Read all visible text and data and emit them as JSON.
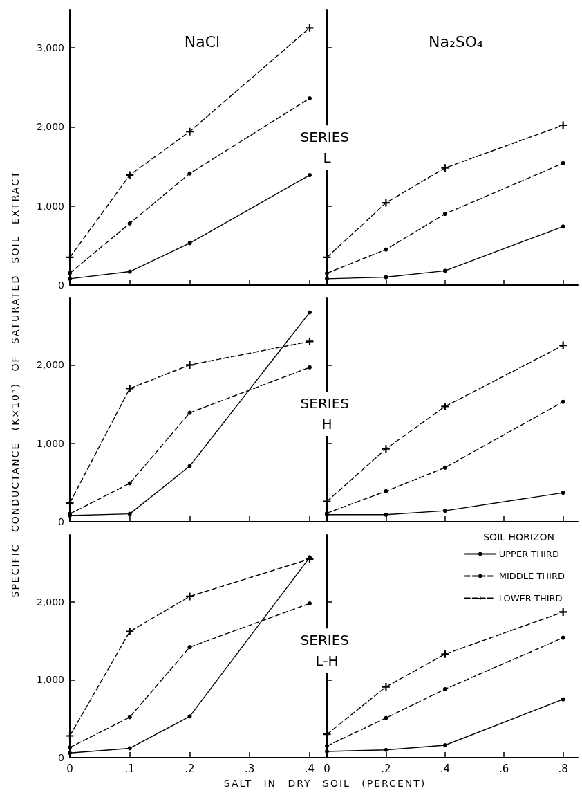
{
  "chart_data": [
    {
      "type": "line",
      "title": "NaCl",
      "x": [
        0,
        0.1,
        0.2,
        0.4
      ],
      "xlim": [
        0,
        0.43
      ],
      "xticks": [
        {
          "value": 0.1,
          "label": null
        },
        {
          "value": 0.2,
          "label": null
        },
        {
          "value": 0.3,
          "label": null
        },
        {
          "value": 0.4,
          "label": null
        }
      ],
      "ylim": [
        0,
        3480
      ],
      "yticks": [
        {
          "value": 0,
          "label": "0"
        },
        {
          "value": 1000,
          "label": "1,000"
        },
        {
          "value": 2000,
          "label": "2,000"
        },
        {
          "value": 3000,
          "label": "3,000"
        }
      ],
      "tick_labels": "y",
      "series": [
        {
          "color": "#000000",
          "marker": "circle",
          "line_style": "solid",
          "values": [
            80,
            170,
            530,
            1390
          ]
        },
        {
          "color": "#000000",
          "marker": "circle",
          "line_style": "dashed",
          "values": [
            150,
            780,
            1410,
            2360
          ]
        },
        {
          "color": "#000000",
          "marker": "cross",
          "line_style": "dashed",
          "values": [
            350,
            1390,
            1940,
            3250
          ]
        }
      ]
    },
    {
      "type": "line",
      "title": "Na₂SO₄",
      "annotations": [
        "SERIES L"
      ],
      "x": [
        0,
        0.2,
        0.4,
        0.8
      ],
      "xlim": [
        0,
        0.85
      ],
      "xticks": [
        {
          "value": 0.2,
          "label": null
        },
        {
          "value": 0.4,
          "label": null
        },
        {
          "value": 0.6,
          "label": null
        },
        {
          "value": 0.8,
          "label": null
        }
      ],
      "ylim": [
        0,
        3480
      ],
      "yticks": [
        {
          "value": 1000,
          "label": null
        },
        {
          "value": 2000,
          "label": null
        },
        {
          "value": 3000,
          "label": null
        }
      ],
      "tick_labels": false,
      "series": [
        {
          "color": "#000000",
          "marker": "circle",
          "line_style": "solid",
          "values": [
            80,
            100,
            180,
            740
          ]
        },
        {
          "color": "#000000",
          "marker": "circle",
          "line_style": "dashed",
          "values": [
            150,
            450,
            900,
            1540
          ]
        },
        {
          "color": "#000000",
          "marker": "cross",
          "line_style": "dashed",
          "values": [
            350,
            1040,
            1480,
            2020
          ]
        }
      ]
    },
    {
      "type": "line",
      "ylabel": "SPECIFIC CONDUCTANCE (K×10⁵) OF SATURATED SOIL EXTRACT",
      "x": [
        0,
        0.1,
        0.2,
        0.4
      ],
      "xlim": [
        0,
        0.43
      ],
      "xticks": [
        {
          "value": 0.1,
          "label": null
        },
        {
          "value": 0.2,
          "label": null
        },
        {
          "value": 0.3,
          "label": null
        },
        {
          "value": 0.4,
          "label": null
        }
      ],
      "ylim": [
        0,
        2860
      ],
      "yticks": [
        {
          "value": 0,
          "label": "0"
        },
        {
          "value": 1000,
          "label": "1,000"
        },
        {
          "value": 2000,
          "label": "2,000"
        }
      ],
      "tick_labels": "y",
      "series": [
        {
          "color": "#000000",
          "marker": "circle",
          "line_style": "solid",
          "values": [
            80,
            100,
            710,
            2670
          ]
        },
        {
          "color": "#000000",
          "marker": "circle",
          "line_style": "dashed",
          "values": [
            100,
            490,
            1390,
            1970
          ]
        },
        {
          "color": "#000000",
          "marker": "cross",
          "line_style": "dashed",
          "values": [
            240,
            1700,
            2000,
            2300
          ]
        }
      ]
    },
    {
      "type": "line",
      "annotations": [
        "SERIES H"
      ],
      "x": [
        0,
        0.2,
        0.4,
        0.8
      ],
      "xlim": [
        0,
        0.85
      ],
      "xticks": [
        {
          "value": 0.2,
          "label": null
        },
        {
          "value": 0.4,
          "label": null
        },
        {
          "value": 0.6,
          "label": null
        },
        {
          "value": 0.8,
          "label": null
        }
      ],
      "ylim": [
        0,
        2860
      ],
      "yticks": [
        {
          "value": 1000,
          "label": null
        },
        {
          "value": 2000,
          "label": null
        }
      ],
      "tick_labels": false,
      "series": [
        {
          "color": "#000000",
          "marker": "circle",
          "line_style": "solid",
          "values": [
            90,
            90,
            140,
            370
          ]
        },
        {
          "color": "#000000",
          "marker": "circle",
          "line_style": "dashed",
          "values": [
            110,
            390,
            690,
            1530
          ]
        },
        {
          "color": "#000000",
          "marker": "cross",
          "line_style": "dashed",
          "values": [
            260,
            930,
            1470,
            2250
          ]
        }
      ]
    },
    {
      "type": "line",
      "xlabel": "SALT IN DRY SOIL (PERCENT)",
      "x": [
        0,
        0.1,
        0.2,
        0.4
      ],
      "xlim": [
        0,
        0.43
      ],
      "xticks": [
        0,
        {
          "value": 0.1,
          "label": ".1"
        },
        {
          "value": 0.2,
          "label": ".2"
        },
        {
          "value": 0.3,
          "label": ".3"
        },
        {
          "value": 0.4,
          "label": ".4"
        }
      ],
      "ylim": [
        0,
        2860
      ],
      "yticks": [
        {
          "value": 0,
          "label": "0"
        },
        {
          "value": 1000,
          "label": "1,000"
        },
        {
          "value": 2000,
          "label": "2,000"
        }
      ],
      "series": [
        {
          "color": "#000000",
          "marker": "circle",
          "line_style": "solid",
          "values": [
            60,
            120,
            530,
            2570
          ]
        },
        {
          "color": "#000000",
          "marker": "circle",
          "line_style": "dashed",
          "values": [
            130,
            520,
            1420,
            1980
          ]
        },
        {
          "color": "#000000",
          "marker": "cross",
          "line_style": "dashed",
          "values": [
            280,
            1620,
            2070,
            2550
          ]
        }
      ]
    },
    {
      "type": "line",
      "annotations": [
        "SERIES L-H"
      ],
      "legend": "top right",
      "legend_title": "SOIL HORIZON",
      "x": [
        0,
        0.2,
        0.4,
        0.8
      ],
      "xlim": [
        0,
        0.85
      ],
      "xticks": [
        0,
        {
          "value": 0.2,
          "label": ".2"
        },
        {
          "value": 0.4,
          "label": ".4"
        },
        {
          "value": 0.6,
          "label": ".6"
        },
        {
          "value": 0.8,
          "label": ".8"
        }
      ],
      "ylim": [
        0,
        2860
      ],
      "yticks": [
        {
          "value": 1000,
          "label": null
        },
        {
          "value": 2000,
          "label": null
        }
      ],
      "tick_labels": "x",
      "series": [
        {
          "name": "UPPER THIRD",
          "color": "#000000",
          "marker": "circle",
          "line_style": "solid",
          "values": [
            80,
            100,
            160,
            750
          ]
        },
        {
          "name": "MIDDLE THIRD",
          "color": "#000000",
          "marker": "circle",
          "line_style": "dashed",
          "values": [
            150,
            510,
            880,
            1540
          ]
        },
        {
          "name": "LOWER THIRD",
          "color": "#000000",
          "marker": "cross",
          "line_style": "dashed",
          "values": [
            300,
            910,
            1330,
            1870
          ]
        }
      ]
    }
  ]
}
